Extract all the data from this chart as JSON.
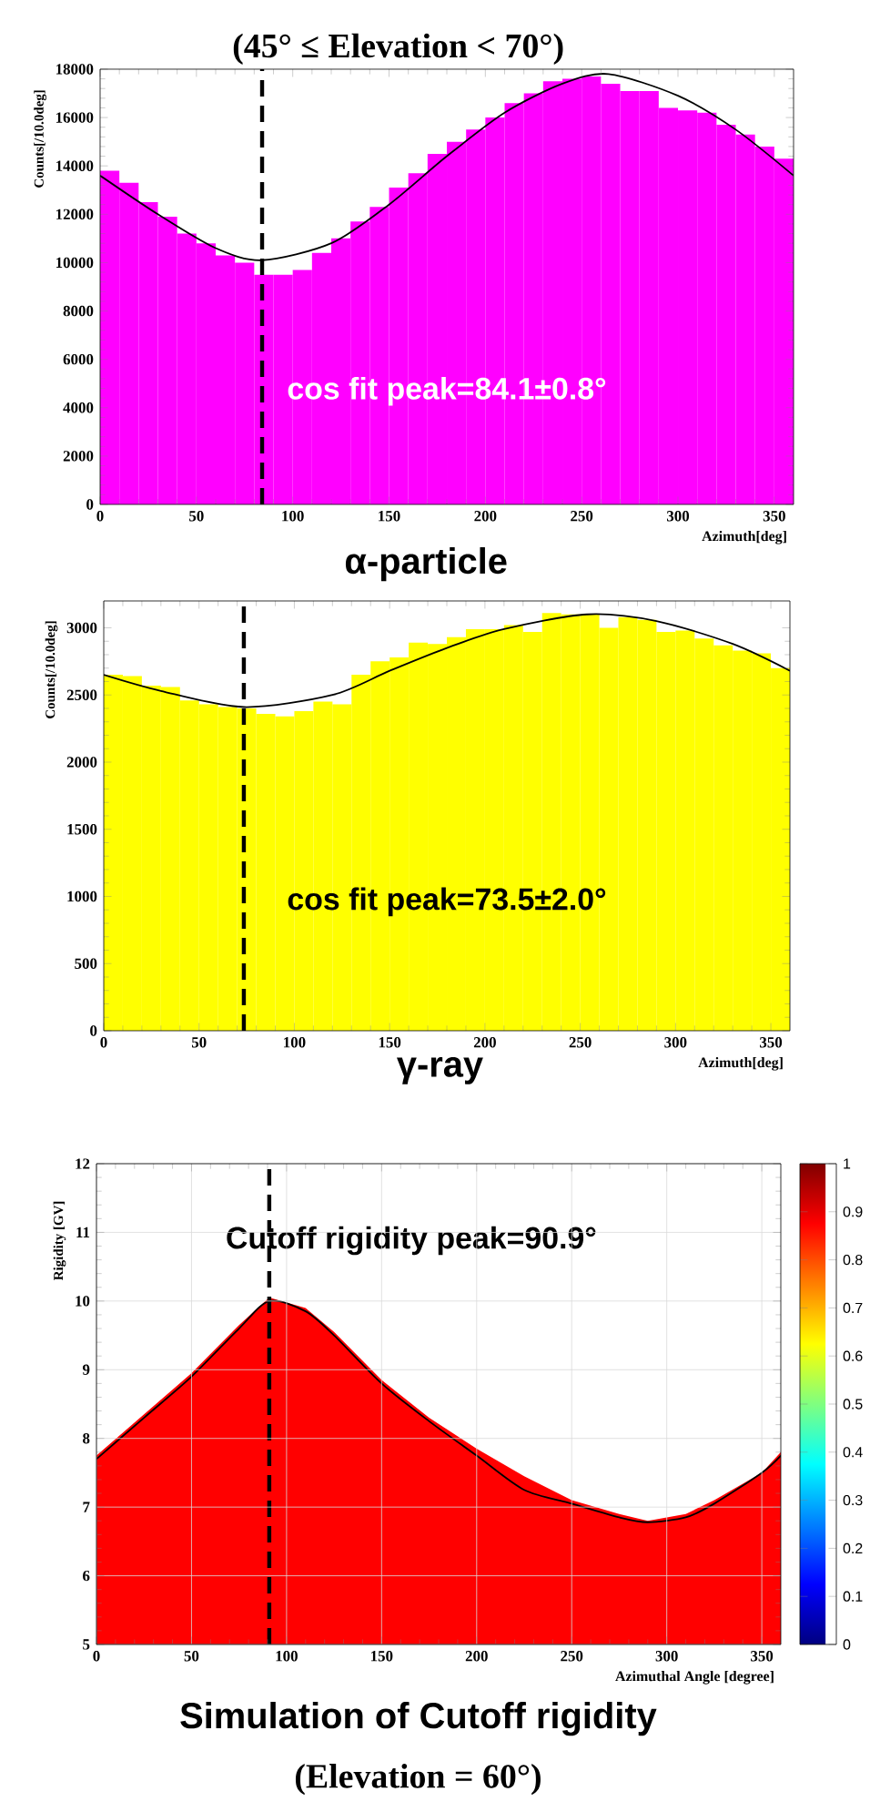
{
  "chart_data": [
    {
      "type": "histogram",
      "title": "(45° ≤ Elevation < 70°)",
      "xlabel": "Azimuth[deg]",
      "ylabel": "Counts[/10.0deg]",
      "bins": [
        0,
        10,
        20,
        30,
        40,
        50,
        60,
        70,
        80,
        90,
        100,
        110,
        120,
        130,
        140,
        150,
        160,
        170,
        180,
        190,
        200,
        210,
        220,
        230,
        240,
        250,
        260,
        270,
        280,
        290,
        300,
        310,
        320,
        330,
        340,
        350,
        360
      ],
      "series": [
        {
          "color": "#ff00ff",
          "values": [
            13800,
            13300,
            12500,
            11900,
            11200,
            10800,
            10300,
            10000,
            9500,
            9500,
            9700,
            10400,
            11000,
            11700,
            12300,
            13100,
            13700,
            14500,
            15000,
            15500,
            16000,
            16600,
            17000,
            17500,
            17600,
            17700,
            17400,
            17100,
            17100,
            16400,
            16300,
            16200,
            15700,
            15300,
            14800,
            14300
          ]
        },
        {
          "type": "line",
          "color": "#000000",
          "x": [
            0,
            30,
            60,
            84.1,
            120,
            150,
            180,
            210,
            240,
            264,
            300,
            330,
            360
          ],
          "values": [
            13600,
            12000,
            10600,
            10100,
            10800,
            12400,
            14400,
            16200,
            17400,
            17800,
            16900,
            15500,
            13600
          ]
        }
      ],
      "xlim": [
        0,
        360
      ],
      "ylim": [
        0,
        18000
      ],
      "xticks": [
        0,
        50,
        100,
        150,
        200,
        250,
        300,
        350
      ],
      "yticks": [
        0,
        2000,
        4000,
        6000,
        8000,
        10000,
        12000,
        14000,
        16000,
        18000
      ],
      "ref_lines": [
        {
          "axis": "x",
          "value": 84.1,
          "color": "#000000",
          "line_style": "dashed"
        }
      ],
      "annotations": [
        "cos fit peak=84.1±0.8°",
        "α-particle"
      ]
    },
    {
      "type": "histogram",
      "xlabel": "Azimuth[deg]",
      "ylabel": "Counts[/10.0deg]",
      "bins": [
        0,
        10,
        20,
        30,
        40,
        50,
        60,
        70,
        80,
        90,
        100,
        110,
        120,
        130,
        140,
        150,
        160,
        170,
        180,
        190,
        200,
        210,
        220,
        230,
        240,
        250,
        260,
        270,
        280,
        290,
        300,
        310,
        320,
        330,
        340,
        350,
        360
      ],
      "series": [
        {
          "color": "#ffff00",
          "values": [
            2650,
            2640,
            2570,
            2560,
            2460,
            2430,
            2410,
            2400,
            2360,
            2340,
            2380,
            2450,
            2430,
            2650,
            2750,
            2780,
            2890,
            2880,
            2930,
            2990,
            2990,
            3020,
            2970,
            3110,
            3100,
            3100,
            3000,
            3080,
            3060,
            2970,
            2980,
            2920,
            2870,
            2830,
            2810,
            2700
          ]
        },
        {
          "type": "line",
          "color": "#000000",
          "x": [
            0,
            30,
            73.5,
            120,
            150,
            180,
            210,
            253.5,
            290,
            330,
            360
          ],
          "values": [
            2650,
            2530,
            2410,
            2500,
            2680,
            2850,
            2990,
            3100,
            3050,
            2880,
            2680
          ]
        }
      ],
      "xlim": [
        0,
        360
      ],
      "ylim": [
        0,
        3200
      ],
      "xticks": [
        0,
        50,
        100,
        150,
        200,
        250,
        300,
        350
      ],
      "yticks": [
        0,
        500,
        1000,
        1500,
        2000,
        2500,
        3000
      ],
      "ref_lines": [
        {
          "axis": "x",
          "value": 73.5,
          "color": "#000000",
          "line_style": "dashed"
        }
      ],
      "annotations": [
        "cos fit peak=73.5±2.0°",
        "γ-ray"
      ]
    },
    {
      "type": "area",
      "title": "Simulation of Cutoff rigidity",
      "subtitle": "(Elevation = 60°)",
      "xlabel": "Azimuthal Angle [degree]",
      "ylabel": "Rigidity [GV]",
      "series": [
        {
          "color": "#ff0000",
          "x": [
            0,
            25,
            50,
            75,
            90.9,
            110,
            125,
            150,
            175,
            200,
            225,
            250,
            275,
            290,
            310,
            325,
            350,
            360
          ],
          "values": [
            7.75,
            8.35,
            8.95,
            9.65,
            10.05,
            9.9,
            9.55,
            8.85,
            8.3,
            7.85,
            7.45,
            7.1,
            6.9,
            6.8,
            6.9,
            7.1,
            7.5,
            7.8
          ]
        },
        {
          "type": "line",
          "color": "#000000",
          "x": [
            0,
            25,
            50,
            75,
            90.9,
            110,
            125,
            150,
            175,
            200,
            225,
            250,
            275,
            290,
            310,
            325,
            350,
            360
          ],
          "values": [
            7.7,
            8.3,
            8.9,
            9.6,
            10.0,
            9.85,
            9.5,
            8.8,
            8.25,
            7.75,
            7.25,
            7.05,
            6.85,
            6.78,
            6.85,
            7.05,
            7.5,
            7.75
          ]
        }
      ],
      "xlim": [
        0,
        360
      ],
      "ylim": [
        5,
        12
      ],
      "xticks": [
        0,
        50,
        100,
        150,
        200,
        250,
        300,
        350
      ],
      "yticks": [
        5,
        6,
        7,
        8,
        9,
        10,
        11,
        12
      ],
      "grid": true,
      "clim": [
        0,
        1
      ],
      "cticks": [
        0,
        0.1,
        0.2,
        0.3,
        0.4,
        0.5,
        0.6,
        0.7,
        0.8,
        0.9,
        1
      ],
      "ref_lines": [
        {
          "axis": "x",
          "value": 90.9,
          "color": "#000000",
          "line_style": "dashed"
        }
      ],
      "annotations": [
        "Cutoff rigidity peak=90.9°"
      ]
    }
  ]
}
